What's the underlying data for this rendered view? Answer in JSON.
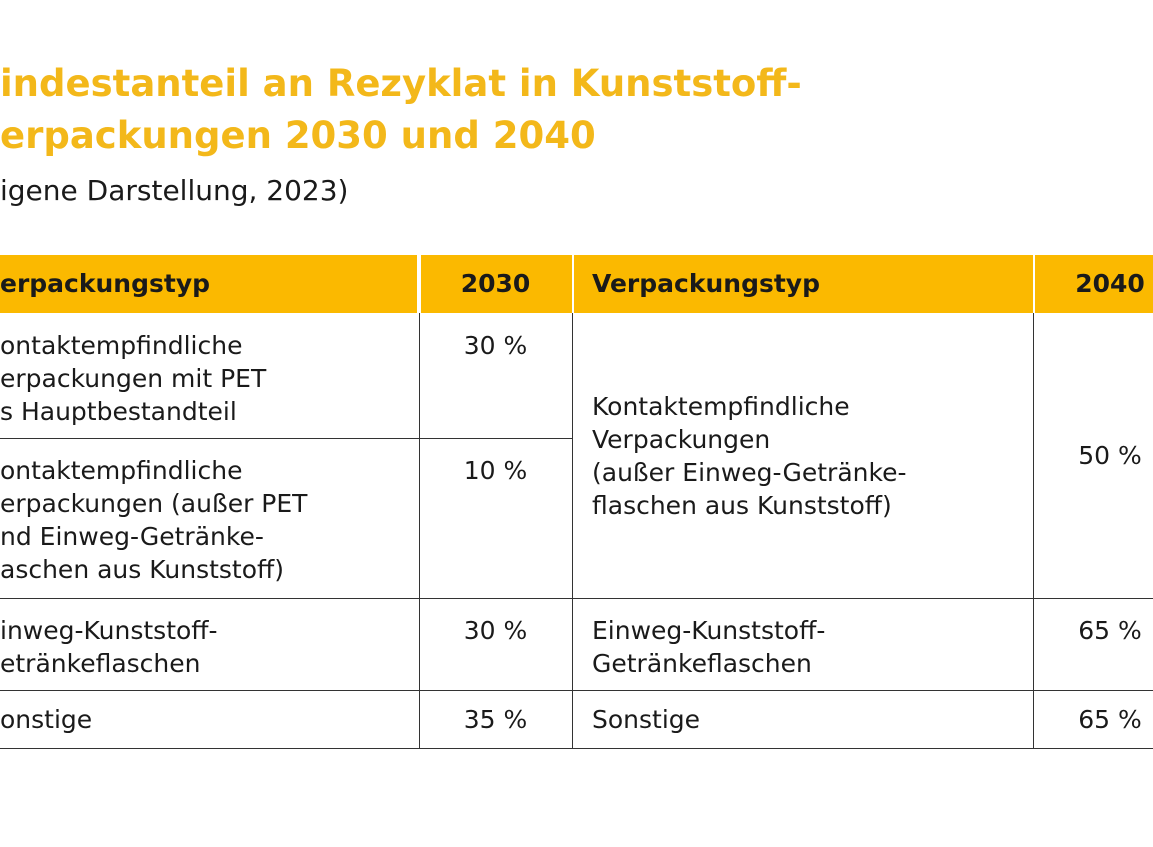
{
  "header": {
    "title_lines": [
      "indestanteil an Rezyklat in Kunststoff-",
      "erpackungen 2030 und 2040"
    ],
    "subtitle": "igene Darstellung, 2023)"
  },
  "table": {
    "columns": [
      "erpackungstyp",
      "2030",
      "Verpackungstyp",
      "2040"
    ],
    "rows": [
      [
        [
          "ontaktempfindliche",
          "erpackungen mit PET",
          "s Hauptbestandteil"
        ],
        "30 %",
        [
          "Kontaktempfindliche",
          "Verpackungen",
          "(außer Einweg-Getränke-",
          "flaschen aus Kunststoff)"
        ],
        "50 %"
      ],
      [
        [
          "ontaktempfindliche",
          "erpackungen (außer PET",
          "nd Einweg-Getränke-",
          "aschen aus Kunststoff)"
        ],
        "10 %"
      ],
      [
        [
          "inweg-Kunststoff-",
          "etränkeflaschen"
        ],
        "30 %",
        [
          "Einweg-Kunststoff-",
          "Getränkeflaschen"
        ],
        "65 %"
      ],
      [
        [
          "onstige"
        ],
        "35 %",
        [
          "Sonstige"
        ],
        "65 %"
      ]
    ]
  }
}
